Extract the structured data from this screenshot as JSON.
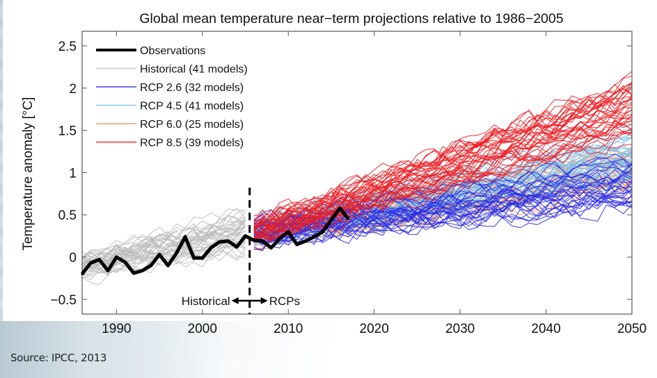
{
  "source_text": "Source: IPCC, 2013",
  "chart_data": {
    "type": "line",
    "title": "Global mean temperature near−term projections relative to 1986−2005",
    "xlabel": "",
    "ylabel": "Temperature anomaly  [°C]",
    "xlim": [
      1986,
      2050
    ],
    "ylim": [
      -0.65,
      2.7
    ],
    "x_ticks": [
      1990,
      2000,
      2010,
      2020,
      2030,
      2040,
      2050
    ],
    "x_tick_labels": [
      "1990",
      "2000",
      "2010",
      "2020",
      "2030",
      "2040",
      "2050"
    ],
    "y_ticks": [
      -0.5,
      0,
      0.5,
      1,
      1.5,
      2,
      2.5
    ],
    "y_tick_labels": [
      "−0.5",
      "0",
      "0.5",
      "1",
      "1.5",
      "2",
      "2.5"
    ],
    "grid": false,
    "legend_position": "top-left",
    "legend": [
      {
        "label": "Observations",
        "color": "#000000"
      },
      {
        "label": "Historical (41 models)",
        "color": "#c8c8c8"
      },
      {
        "label": "RCP 2.6 (32 models)",
        "color": "#3a3ae0"
      },
      {
        "label": "RCP 4.5 (41 models)",
        "color": "#8cc4ea"
      },
      {
        "label": "RCP 6.0 (25 models)",
        "color": "#f0a070"
      },
      {
        "label": "RCP 8.5 (39 models)",
        "color": "#e8262a"
      }
    ],
    "divider": {
      "x": 2005.5,
      "style": "dashed"
    },
    "annotations": {
      "left": "Historical",
      "right": "RCPs",
      "y": -0.5
    },
    "series": [
      {
        "name": "Observations",
        "color": "#000000",
        "x": [
          1986,
          1987,
          1988,
          1989,
          1990,
          1991,
          1992,
          1993,
          1994,
          1995,
          1996,
          1997,
          1998,
          1999,
          2000,
          2001,
          2002,
          2003,
          2004,
          2005,
          2006,
          2007,
          2008,
          2009,
          2010,
          2011,
          2012,
          2013,
          2014,
          2015,
          2016,
          2017
        ],
        "values": [
          -0.2,
          -0.07,
          -0.03,
          -0.16,
          0.0,
          -0.06,
          -0.19,
          -0.16,
          -0.1,
          0.03,
          -0.1,
          0.05,
          0.24,
          -0.01,
          -0.01,
          0.11,
          0.18,
          0.19,
          0.12,
          0.25,
          0.2,
          0.19,
          0.11,
          0.22,
          0.3,
          0.15,
          0.19,
          0.24,
          0.3,
          0.44,
          0.58,
          0.45
        ]
      }
    ],
    "ensembles": [
      {
        "name": "Historical",
        "models": 41,
        "color": "#bdbdbd",
        "years": [
          1986,
          2005
        ],
        "mean_start": -0.12,
        "mean_end": 0.25,
        "spread": 0.16,
        "seed": 11
      },
      {
        "name": "RCP 6.0",
        "models": 25,
        "color": "#f0995c",
        "years": [
          2006,
          2050
        ],
        "mean_start": 0.28,
        "mean_end": 1.05,
        "spread": 0.17,
        "seed": 23
      },
      {
        "name": "RCP 4.5",
        "models": 41,
        "color": "#7fbde8",
        "years": [
          2006,
          2050
        ],
        "mean_start": 0.3,
        "mean_end": 1.2,
        "spread": 0.17,
        "seed": 37
      },
      {
        "name": "RCP 2.6",
        "models": 32,
        "color": "#2a2ae8",
        "years": [
          2006,
          2050
        ],
        "mean_start": 0.3,
        "mean_end": 0.9,
        "spread": 0.18,
        "seed": 51
      },
      {
        "name": "RCP 8.5",
        "models": 39,
        "color": "#ee1c22",
        "years": [
          2006,
          2050
        ],
        "mean_start": 0.3,
        "mean_end": 1.8,
        "spread": 0.2,
        "seed": 73
      }
    ]
  }
}
